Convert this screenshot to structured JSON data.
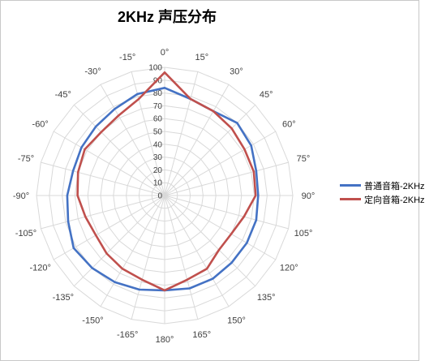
{
  "chart_data": {
    "type": "radar",
    "title": "2KHz 声压分布",
    "categories": [
      "0°",
      "15°",
      "30°",
      "45°",
      "60°",
      "75°",
      "90°",
      "105°",
      "120°",
      "135°",
      "150°",
      "165°",
      "180°",
      "-165°",
      "-150°",
      "-135°",
      "-120°",
      "-105°",
      "-90°",
      "-75°",
      "-60°",
      "-45°",
      "-30°",
      "-15°"
    ],
    "radial_ticks": [
      "0",
      "10",
      "20",
      "30",
      "40",
      "50",
      "60",
      "70",
      "80",
      "90",
      "100"
    ],
    "rlim": [
      0,
      100
    ],
    "grid": true,
    "legend_position": "right",
    "series": [
      {
        "name": "普通音箱-2KHz",
        "color": "#4472c4",
        "values": [
          84,
          78,
          76,
          80,
          78,
          74,
          73,
          74,
          74,
          74,
          75,
          75,
          74,
          76,
          78,
          80,
          82,
          78,
          76,
          74,
          75,
          76,
          78,
          82
        ]
      },
      {
        "name": "定向音箱-2KHz",
        "color": "#c0504d",
        "values": [
          96,
          78,
          76,
          74,
          72,
          72,
          71,
          64,
          60,
          60,
          66,
          68,
          74,
          68,
          66,
          64,
          62,
          64,
          68,
          70,
          72,
          70,
          72,
          78
        ]
      }
    ]
  }
}
